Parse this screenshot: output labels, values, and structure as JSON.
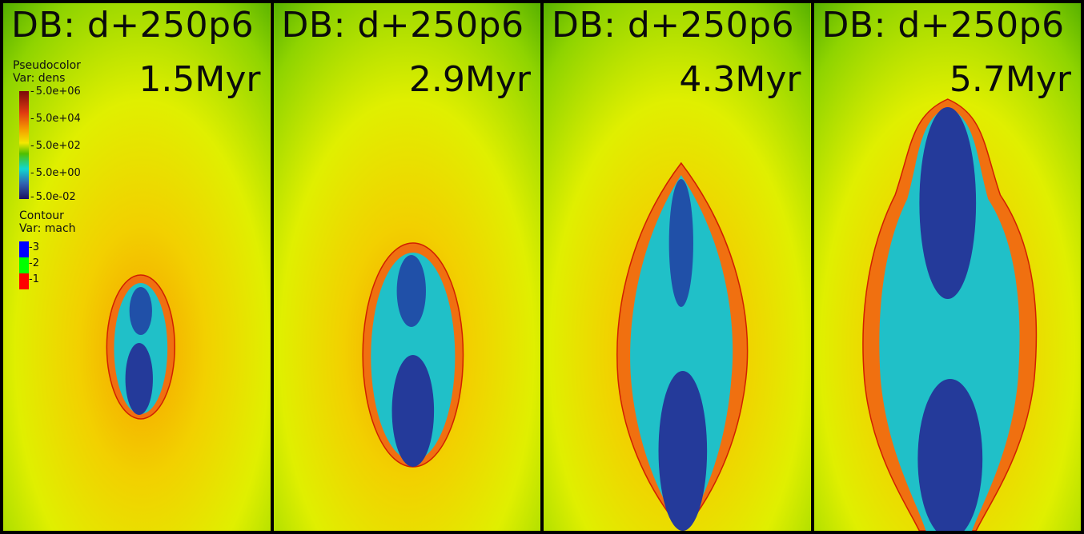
{
  "panels": [
    {
      "title": "DB: d+250p6",
      "time": "1.5Myr"
    },
    {
      "title": "DB: d+250p6",
      "time": "2.9Myr"
    },
    {
      "title": "DB: d+250p6",
      "time": "4.3Myr"
    },
    {
      "title": "DB: d+250p6",
      "time": "5.7Myr"
    }
  ],
  "legend": {
    "pseudocolor_title": "Pseudocolor",
    "pseudocolor_var": "Var: dens",
    "colorbar_labels": [
      "5.0e+06",
      "5.0e+04",
      "5.0e+02",
      "5.0e+00",
      "5.0e-02"
    ],
    "contour_title": "Contour",
    "contour_var": "Var: mach",
    "contour_levels": [
      {
        "label": "3",
        "color": "#0000ff"
      },
      {
        "label": "2",
        "color": "#00ff00"
      },
      {
        "label": "1",
        "color": "#ff0000"
      }
    ]
  },
  "colors": {
    "background_outer": "#1b8a00",
    "background_mid": "#e5f000",
    "halo_inner": "#f6a800",
    "shell": "#f07a10",
    "cavity_dark": "#1a1a80",
    "cavity_light": "#22c8d0"
  }
}
